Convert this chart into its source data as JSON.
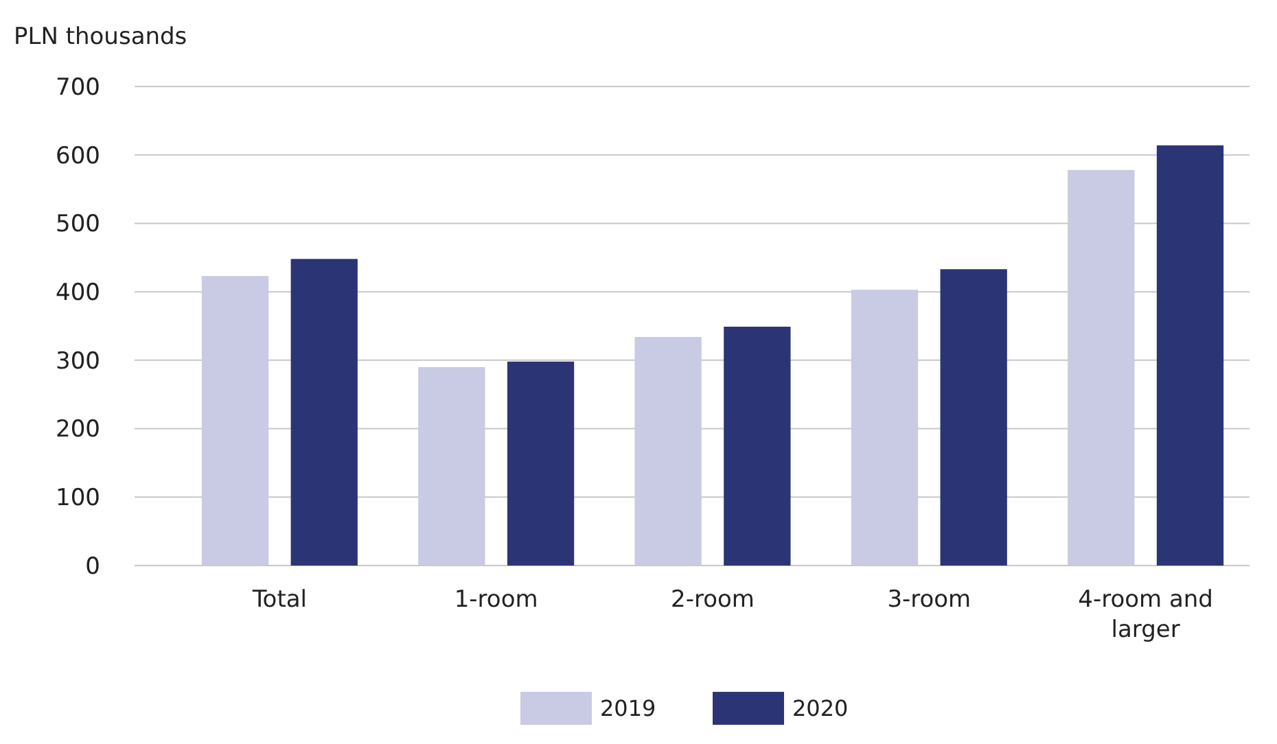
{
  "chart_data": {
    "type": "bar",
    "ylabel": "PLN thousands",
    "categories": [
      "Total",
      "1-room",
      "2-room",
      "3-room",
      "4-room and larger"
    ],
    "series": [
      {
        "name": "2019",
        "color": "#c9cae3",
        "values": [
          423,
          290,
          334,
          403,
          578
        ]
      },
      {
        "name": "2020",
        "color": "#2b3575",
        "values": [
          448,
          298,
          349,
          433,
          614
        ]
      }
    ],
    "ylim": [
      0,
      700
    ],
    "yticks": [
      0,
      100,
      200,
      300,
      400,
      500,
      600,
      700
    ],
    "grid": "y",
    "legend": "bottom"
  }
}
